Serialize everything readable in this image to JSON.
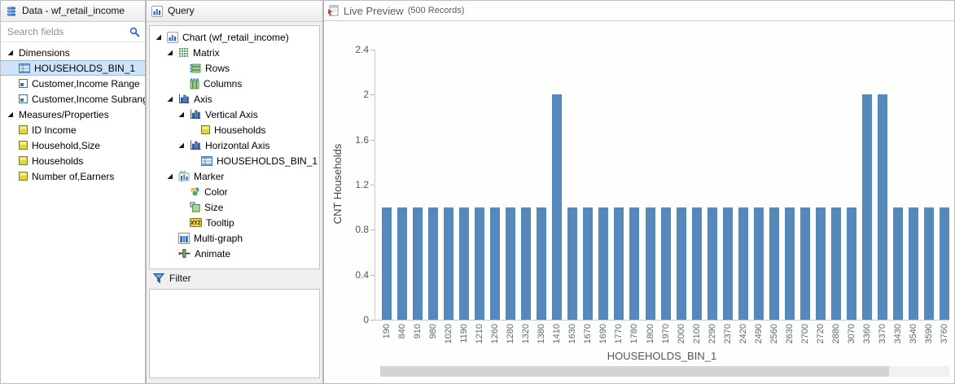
{
  "left_panel": {
    "title": "Data - wf_retail_income",
    "search_placeholder": "Search fields",
    "sections": [
      {
        "label": "Dimensions",
        "items": [
          {
            "label": "HOUSEHOLDS_BIN_1",
            "icon": "table",
            "selected": true
          },
          {
            "label": "Customer,Income Range",
            "icon": "dimension",
            "selected": false
          },
          {
            "label": "Customer,Income Subrange",
            "icon": "dimension",
            "selected": false
          }
        ]
      },
      {
        "label": "Measures/Properties",
        "items": [
          {
            "label": "ID Income",
            "icon": "measure",
            "selected": false
          },
          {
            "label": "Household,Size",
            "icon": "measure",
            "selected": false
          },
          {
            "label": "Households",
            "icon": "measure",
            "selected": false
          },
          {
            "label": "Number of,Earners",
            "icon": "measure",
            "selected": false
          }
        ]
      }
    ]
  },
  "query_panel": {
    "title": "Query",
    "filter_label": "Filter",
    "items": [
      {
        "label": "Chart (wf_retail_income)",
        "icon": "chart",
        "level": 0,
        "expander": true
      },
      {
        "label": "Matrix",
        "icon": "matrix",
        "level": 1,
        "expander": true
      },
      {
        "label": "Rows",
        "icon": "rows",
        "level": 2,
        "expander": false
      },
      {
        "label": "Columns",
        "icon": "columns",
        "level": 2,
        "expander": false
      },
      {
        "label": "Axis",
        "icon": "axis",
        "level": 1,
        "expander": true
      },
      {
        "label": "Vertical Axis",
        "icon": "axis",
        "level": 2,
        "expander": true
      },
      {
        "label": "Households",
        "icon": "measure",
        "level": 3,
        "expander": false
      },
      {
        "label": "Horizontal Axis",
        "icon": "axis",
        "level": 2,
        "expander": true
      },
      {
        "label": "HOUSEHOLDS_BIN_1",
        "icon": "table",
        "level": 3,
        "expander": false
      },
      {
        "label": "Marker",
        "icon": "marker",
        "level": 1,
        "expander": true
      },
      {
        "label": "Color",
        "icon": "color",
        "level": 2,
        "expander": false
      },
      {
        "label": "Size",
        "icon": "size",
        "level": 2,
        "expander": false
      },
      {
        "label": "Tooltip",
        "icon": "tooltip",
        "level": 2,
        "expander": false
      },
      {
        "label": "Multi-graph",
        "icon": "multigraph",
        "level": 1,
        "expander": false
      },
      {
        "label": "Animate",
        "icon": "animate",
        "level": 1,
        "expander": false
      }
    ]
  },
  "preview_panel": {
    "title": "Live Preview",
    "records": "(500 Records)"
  },
  "chart_data": {
    "type": "bar",
    "title": "",
    "xlabel": "HOUSEHOLDS_BIN_1",
    "ylabel": "CNT Households",
    "ylim": [
      0,
      2.4
    ],
    "ytick_labels": [
      "0",
      "0.4",
      "0.8",
      "1.2",
      "1.6",
      "2",
      "2.4"
    ],
    "grid": false,
    "legend": "none",
    "bar_color": "#5589bb",
    "categories": [
      "190",
      "840",
      "910",
      "980",
      "1020",
      "1190",
      "1210",
      "1260",
      "1280",
      "1320",
      "1380",
      "1410",
      "1630",
      "1670",
      "1690",
      "1770",
      "1780",
      "1800",
      "1970",
      "2000",
      "2100",
      "2290",
      "2370",
      "2420",
      "2490",
      "2560",
      "2630",
      "2700",
      "2720",
      "2880",
      "3070",
      "3360",
      "3370",
      "3430",
      "3540",
      "3590",
      "3760"
    ],
    "values": [
      1,
      1,
      1,
      1,
      1,
      1,
      1,
      1,
      1,
      1,
      1,
      2,
      1,
      1,
      1,
      1,
      1,
      1,
      1,
      1,
      1,
      1,
      1,
      1,
      1,
      1,
      1,
      1,
      1,
      1,
      1,
      2,
      2,
      1,
      1,
      1,
      1
    ]
  }
}
